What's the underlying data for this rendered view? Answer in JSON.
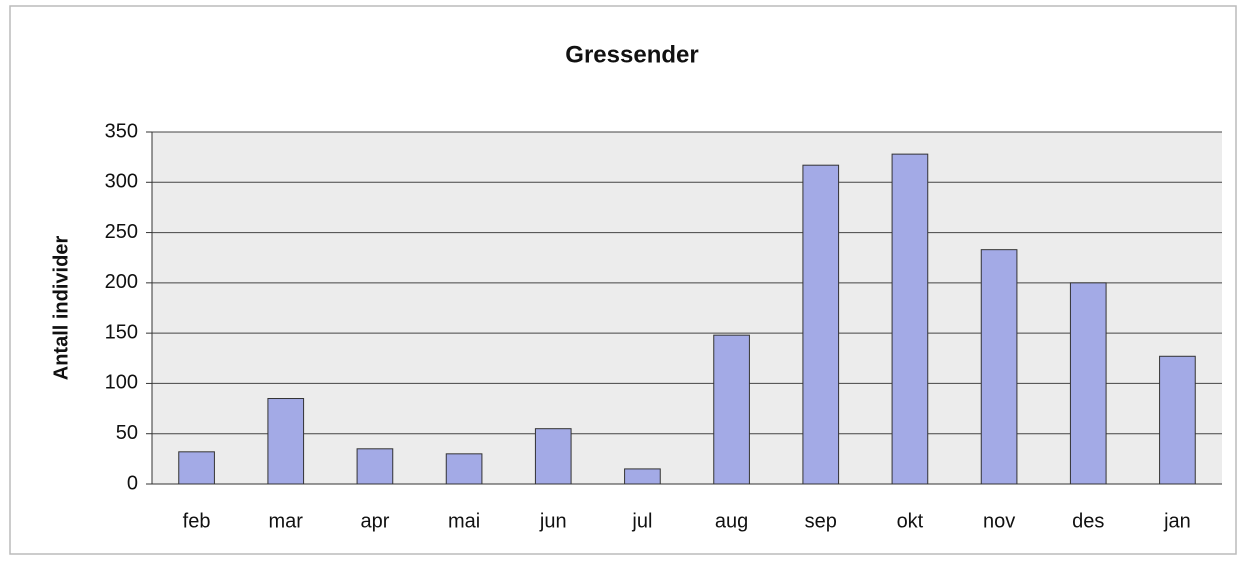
{
  "chart_data": {
    "type": "bar",
    "title": "Gressender",
    "y_label": "Antall individer",
    "categories": [
      "feb",
      "mar",
      "apr",
      "mai",
      "jun",
      "jul",
      "aug",
      "sep",
      "okt",
      "nov",
      "des",
      "jan"
    ],
    "values": [
      32,
      85,
      35,
      30,
      55,
      15,
      148,
      317,
      328,
      233,
      200,
      127
    ],
    "color": "#a3aae6",
    "ylim": [
      0,
      350
    ],
    "yticks": [
      0,
      50,
      100,
      150,
      200,
      250,
      300,
      350
    ],
    "grid": true
  }
}
